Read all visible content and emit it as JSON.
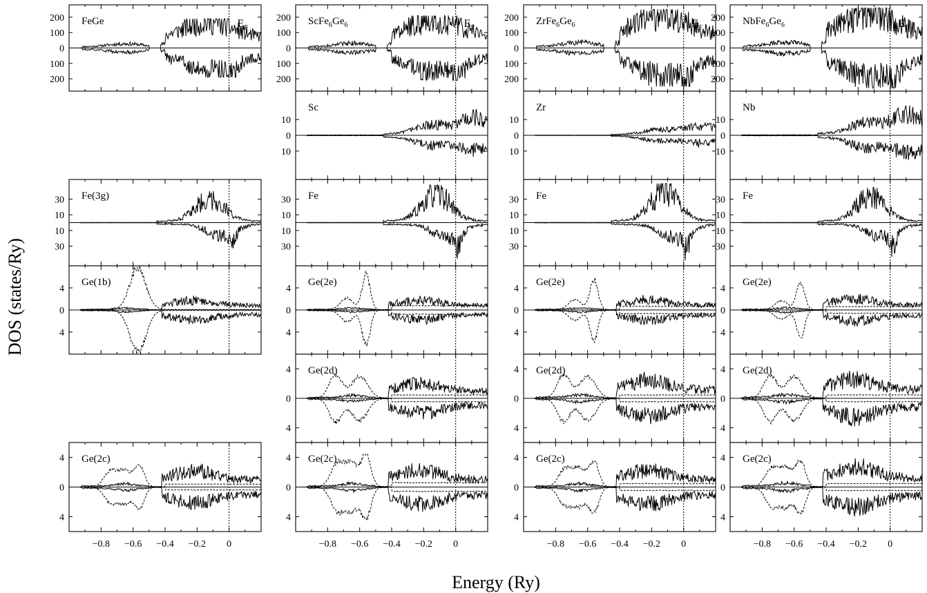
{
  "figure": {
    "ylabel": "DOS (states/Ry)",
    "xlabel": "Energy (Ry)"
  },
  "chart_data": [
    {
      "type": "line",
      "column": "FeGe",
      "row": 0,
      "label": "FeGe",
      "label_sub": null,
      "show_ef_label": true,
      "ylim": [
        -280,
        280
      ],
      "yticks": [
        {
          "v": 200,
          "t": "200"
        },
        {
          "v": 100,
          "t": "100"
        },
        {
          "v": 0,
          "t": "0"
        },
        {
          "v": -100,
          "t": "100"
        },
        {
          "v": -200,
          "t": "200"
        }
      ],
      "series": [
        {
          "style": "solid",
          "shape": "total",
          "peak": 190
        }
      ]
    },
    {
      "type": "line",
      "column": "FeGe",
      "row": 2,
      "label": "Fe(3g)",
      "label_sub": null,
      "show_ef_label": false,
      "ylim": [
        -55,
        55
      ],
      "yticks": [
        {
          "v": 30,
          "t": "30"
        },
        {
          "v": 10,
          "t": "10"
        },
        {
          "v": -10,
          "t": "10"
        },
        {
          "v": -30,
          "t": "30"
        }
      ],
      "series": [
        {
          "style": "solid",
          "shape": "fe",
          "peak": 40
        }
      ]
    },
    {
      "type": "line",
      "column": "FeGe",
      "row": 3,
      "label": "Ge(1b)",
      "label_sub": null,
      "show_ef_label": false,
      "ylim": [
        -8,
        8
      ],
      "yticks": [
        {
          "v": 4,
          "t": "4"
        },
        {
          "v": 0,
          "t": "0"
        },
        {
          "v": -4,
          "t": "4"
        }
      ],
      "series": [
        {
          "style": "solid",
          "shape": "ge",
          "peak": 2.6
        },
        {
          "style": "dashed",
          "shape": "ges1b",
          "peak": 8
        }
      ]
    },
    {
      "type": "line",
      "column": "FeGe",
      "row": 5,
      "label": "Ge(2c)",
      "label_sub": null,
      "show_ef_label": false,
      "ylim": [
        -6,
        6
      ],
      "yticks": [
        {
          "v": 4,
          "t": "4"
        },
        {
          "v": 0,
          "t": "0"
        },
        {
          "v": -4,
          "t": "4"
        }
      ],
      "series": [
        {
          "style": "solid",
          "shape": "ge",
          "peak": 3.2
        },
        {
          "style": "dashed",
          "shape": "ges2c",
          "peak": 3
        }
      ]
    },
    {
      "type": "line",
      "column": "ScFe6Ge6",
      "row": 0,
      "label": "ScFe",
      "label_sub": "6",
      "label_tail": "Ge",
      "label_sub2": "6",
      "show_ef_label": true,
      "ylim": [
        -280,
        280
      ],
      "yticks": [
        {
          "v": 200,
          "t": "200"
        },
        {
          "v": 100,
          "t": "100"
        },
        {
          "v": 0,
          "t": "0"
        },
        {
          "v": -100,
          "t": "100"
        },
        {
          "v": -200,
          "t": "200"
        }
      ],
      "series": [
        {
          "style": "solid",
          "shape": "total",
          "peak": 210
        }
      ]
    },
    {
      "type": "line",
      "column": "ScFe6Ge6",
      "row": 1,
      "label": "Sc",
      "label_sub": null,
      "show_ef_label": false,
      "ylim": [
        -28,
        28
      ],
      "yticks": [
        {
          "v": 10,
          "t": "10"
        },
        {
          "v": 0,
          "t": "0"
        },
        {
          "v": -10,
          "t": "10"
        }
      ],
      "series": [
        {
          "style": "solid",
          "shape": "rm",
          "peak": 20
        }
      ]
    },
    {
      "type": "line",
      "column": "ScFe6Ge6",
      "row": 2,
      "label": "Fe",
      "label_sub": null,
      "show_ef_label": false,
      "ylim": [
        -55,
        55
      ],
      "yticks": [
        {
          "v": 30,
          "t": "30"
        },
        {
          "v": 10,
          "t": "10"
        },
        {
          "v": -10,
          "t": "10"
        },
        {
          "v": -30,
          "t": "30"
        }
      ],
      "series": [
        {
          "style": "solid",
          "shape": "fe",
          "peak": 48
        }
      ]
    },
    {
      "type": "line",
      "column": "ScFe6Ge6",
      "row": 3,
      "label": "Ge(2e)",
      "label_sub": null,
      "show_ef_label": false,
      "ylim": [
        -8,
        8
      ],
      "yticks": [
        {
          "v": 4,
          "t": "4"
        },
        {
          "v": 0,
          "t": "0"
        },
        {
          "v": -4,
          "t": "4"
        }
      ],
      "series": [
        {
          "style": "solid",
          "shape": "ge",
          "peak": 2.6
        },
        {
          "style": "dashed",
          "shape": "ges2e",
          "peak": 7
        }
      ]
    },
    {
      "type": "line",
      "column": "ScFe6Ge6",
      "row": 4,
      "label": "Ge(2d)",
      "label_sub": null,
      "show_ef_label": false,
      "ylim": [
        -6,
        6
      ],
      "yticks": [
        {
          "v": 4,
          "t": "4"
        },
        {
          "v": 0,
          "t": "0"
        },
        {
          "v": -4,
          "t": "4"
        }
      ],
      "series": [
        {
          "style": "solid",
          "shape": "ge",
          "peak": 3
        },
        {
          "style": "dashed",
          "shape": "ges2d",
          "peak": 3.5
        }
      ]
    },
    {
      "type": "line",
      "column": "ScFe6Ge6",
      "row": 5,
      "label": "Ge(2c)",
      "label_sub": null,
      "show_ef_label": false,
      "ylim": [
        -6,
        6
      ],
      "yticks": [
        {
          "v": 4,
          "t": "4"
        },
        {
          "v": 0,
          "t": "0"
        },
        {
          "v": -4,
          "t": "4"
        }
      ],
      "series": [
        {
          "style": "solid",
          "shape": "ge",
          "peak": 3.4
        },
        {
          "style": "dashed",
          "shape": "ges2c",
          "peak": 4.4
        }
      ]
    },
    {
      "type": "line",
      "column": "ZrFe6Ge6",
      "row": 0,
      "label": "ZrFe",
      "label_sub": "6",
      "label_tail": "Ge",
      "label_sub2": "6",
      "show_ef_label": true,
      "ylim": [
        -280,
        280
      ],
      "yticks": [
        {
          "v": 200,
          "t": "200"
        },
        {
          "v": 100,
          "t": "100"
        },
        {
          "v": 0,
          "t": "0"
        },
        {
          "v": -100,
          "t": "100"
        },
        {
          "v": -200,
          "t": "200"
        }
      ],
      "series": [
        {
          "style": "solid",
          "shape": "total",
          "peak": 250
        }
      ]
    },
    {
      "type": "line",
      "column": "ZrFe6Ge6",
      "row": 1,
      "label": "Zr",
      "label_sub": null,
      "show_ef_label": false,
      "ylim": [
        -28,
        28
      ],
      "yticks": [
        {
          "v": 10,
          "t": "10"
        },
        {
          "v": 0,
          "t": "0"
        },
        {
          "v": -10,
          "t": "10"
        }
      ],
      "series": [
        {
          "style": "solid",
          "shape": "rm",
          "peak": 11
        }
      ]
    },
    {
      "type": "line",
      "column": "ZrFe6Ge6",
      "row": 2,
      "label": "Fe",
      "label_sub": null,
      "show_ef_label": false,
      "ylim": [
        -55,
        55
      ],
      "yticks": [
        {
          "v": 30,
          "t": "30"
        },
        {
          "v": 10,
          "t": "10"
        },
        {
          "v": -10,
          "t": "10"
        },
        {
          "v": -30,
          "t": "30"
        }
      ],
      "series": [
        {
          "style": "solid",
          "shape": "fe",
          "peak": 50
        }
      ]
    },
    {
      "type": "line",
      "column": "ZrFe6Ge6",
      "row": 3,
      "label": "Ge(2e)",
      "label_sub": null,
      "show_ef_label": false,
      "ylim": [
        -8,
        8
      ],
      "yticks": [
        {
          "v": 4,
          "t": "4"
        },
        {
          "v": 0,
          "t": "0"
        },
        {
          "v": -4,
          "t": "4"
        }
      ],
      "series": [
        {
          "style": "solid",
          "shape": "ge",
          "peak": 2.8
        },
        {
          "style": "dashed",
          "shape": "ges2e",
          "peak": 6
        }
      ]
    },
    {
      "type": "line",
      "column": "ZrFe6Ge6",
      "row": 4,
      "label": "Ge(2d)",
      "label_sub": null,
      "show_ef_label": false,
      "ylim": [
        -6,
        6
      ],
      "yticks": [
        {
          "v": 4,
          "t": "4"
        },
        {
          "v": 0,
          "t": "0"
        },
        {
          "v": -4,
          "t": "4"
        }
      ],
      "series": [
        {
          "style": "solid",
          "shape": "ge",
          "peak": 3.6
        },
        {
          "style": "dashed",
          "shape": "ges2d",
          "peak": 3.5
        }
      ]
    },
    {
      "type": "line",
      "column": "ZrFe6Ge6",
      "row": 5,
      "label": "Ge(2c)",
      "label_sub": null,
      "show_ef_label": false,
      "ylim": [
        -6,
        6
      ],
      "yticks": [
        {
          "v": 4,
          "t": "4"
        },
        {
          "v": 0,
          "t": "0"
        },
        {
          "v": -4,
          "t": "4"
        }
      ],
      "series": [
        {
          "style": "solid",
          "shape": "ge",
          "peak": 3.4
        },
        {
          "style": "dashed",
          "shape": "ges2c",
          "peak": 3.5
        }
      ]
    },
    {
      "type": "line",
      "column": "NbFe6Ge6",
      "row": 0,
      "label": "NbFe",
      "label_sub": "6",
      "label_tail": "Ge",
      "label_sub2": "6",
      "show_ef_label": true,
      "ylim": [
        -280,
        280
      ],
      "yticks": [
        {
          "v": 200,
          "t": "200"
        },
        {
          "v": 100,
          "t": "100"
        },
        {
          "v": 0,
          "t": "0"
        },
        {
          "v": -100,
          "t": "100"
        },
        {
          "v": -200,
          "t": "200"
        }
      ],
      "series": [
        {
          "style": "solid",
          "shape": "total",
          "peak": 260
        }
      ]
    },
    {
      "type": "line",
      "column": "NbFe6Ge6",
      "row": 1,
      "label": "Nb",
      "label_sub": null,
      "show_ef_label": false,
      "ylim": [
        -28,
        28
      ],
      "yticks": [
        {
          "v": 10,
          "t": "10"
        },
        {
          "v": 0,
          "t": "0"
        },
        {
          "v": -10,
          "t": "10"
        }
      ],
      "series": [
        {
          "style": "solid",
          "shape": "rm",
          "peak": 25
        }
      ]
    },
    {
      "type": "line",
      "column": "NbFe6Ge6",
      "row": 2,
      "label": "Fe",
      "label_sub": null,
      "show_ef_label": false,
      "ylim": [
        -55,
        55
      ],
      "yticks": [
        {
          "v": 30,
          "t": "30"
        },
        {
          "v": 10,
          "t": "10"
        },
        {
          "v": -10,
          "t": "10"
        },
        {
          "v": -30,
          "t": "30"
        }
      ],
      "series": [
        {
          "style": "solid",
          "shape": "fe",
          "peak": 45
        }
      ]
    },
    {
      "type": "line",
      "column": "NbFe6Ge6",
      "row": 3,
      "label": "Ge(2e)",
      "label_sub": null,
      "show_ef_label": false,
      "ylim": [
        -8,
        8
      ],
      "yticks": [
        {
          "v": 4,
          "t": "4"
        },
        {
          "v": 0,
          "t": "0"
        },
        {
          "v": -4,
          "t": "4"
        }
      ],
      "series": [
        {
          "style": "solid",
          "shape": "ge",
          "peak": 3
        },
        {
          "style": "dashed",
          "shape": "ges2e",
          "peak": 5.5
        }
      ]
    },
    {
      "type": "line",
      "column": "NbFe6Ge6",
      "row": 4,
      "label": "Ge(2d)",
      "label_sub": null,
      "show_ef_label": false,
      "ylim": [
        -6,
        6
      ],
      "yticks": [
        {
          "v": 4,
          "t": "4"
        },
        {
          "v": 0,
          "t": "0"
        },
        {
          "v": -4,
          "t": "4"
        }
      ],
      "series": [
        {
          "style": "solid",
          "shape": "ge",
          "peak": 3.8
        },
        {
          "style": "dashed",
          "shape": "ges2d",
          "peak": 3.5
        }
      ]
    },
    {
      "type": "line",
      "column": "NbFe6Ge6",
      "row": 5,
      "label": "Ge(2c)",
      "label_sub": null,
      "show_ef_label": false,
      "ylim": [
        -6,
        6
      ],
      "yticks": [
        {
          "v": 4,
          "t": "4"
        },
        {
          "v": 0,
          "t": "0"
        },
        {
          "v": -4,
          "t": "4"
        }
      ],
      "series": [
        {
          "style": "solid",
          "shape": "ge",
          "peak": 4
        },
        {
          "style": "dashed",
          "shape": "ges2c",
          "peak": 3.6
        }
      ]
    }
  ],
  "x_axis": {
    "xlim": [
      -1.0,
      0.2
    ],
    "ticks": [
      {
        "v": -0.8,
        "t": "−0.8"
      },
      {
        "v": -0.6,
        "t": "−0.6"
      },
      {
        "v": -0.4,
        "t": "−0.4"
      },
      {
        "v": -0.2,
        "t": "−0.2"
      },
      {
        "v": 0,
        "t": "0"
      }
    ],
    "fermi_level": 0,
    "fermi_label": "E",
    "fermi_label_sub": "F"
  }
}
